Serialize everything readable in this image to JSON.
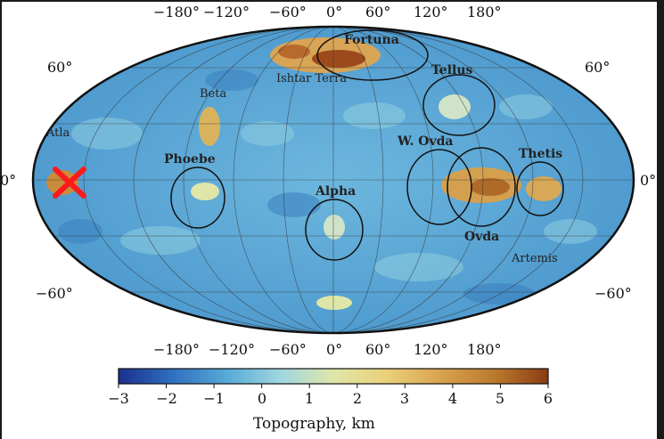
{
  "map": {
    "top_longitude_labels": [
      "−180°",
      "−120°",
      "−60°",
      "0°",
      "60°",
      "120°",
      "180°"
    ],
    "bottom_longitude_labels": [
      "−180°",
      "−120°",
      "−60°",
      "0°",
      "60°",
      "120°",
      "180°"
    ],
    "latitude_labels_left": [
      "60°",
      "0°",
      "−60°"
    ],
    "latitude_labels_right": [
      "60°",
      "0°",
      "−60°"
    ],
    "features": {
      "fortuna": "Fortuna",
      "ishtar": "Ishtar Terra",
      "tellus": "Tellus",
      "beta": "Beta",
      "atla": "Atla",
      "phoebe": "Phoebe",
      "w_ovda": "W. Ovda",
      "thetis": "Thetis",
      "alpha": "Alpha",
      "ovda": "Ovda",
      "artemis": "Artemis"
    },
    "marker": {
      "icon": "x-mark-icon",
      "color": "#ff1a1a",
      "region": "Atla"
    },
    "ocean_color": "#5aa6d4",
    "highland_color": "#c8822a"
  },
  "colorbar": {
    "title": "Topography, km",
    "ticks": [
      "−3",
      "−2",
      "−1",
      "0",
      "1",
      "2",
      "3",
      "4",
      "5",
      "6"
    ],
    "range": [
      -3,
      6
    ],
    "colors": [
      "#1b2f8f",
      "#2f6fbf",
      "#56a9d6",
      "#9ed6e0",
      "#e0e6a8",
      "#ead07a",
      "#d9a24e",
      "#bb7a2e",
      "#8a3c12"
    ]
  }
}
